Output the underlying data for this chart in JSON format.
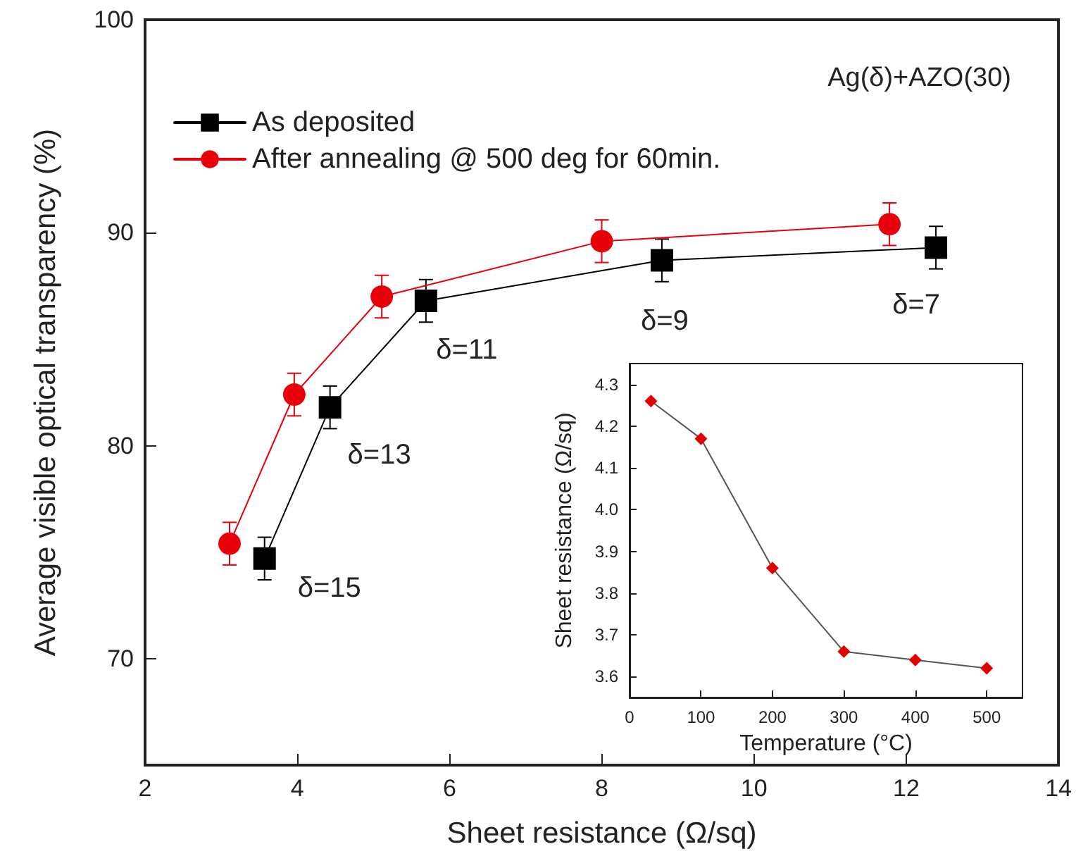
{
  "chart_data": [
    {
      "type": "line",
      "xlabel": "Sheet resistance (Ω/sq)",
      "ylabel": "Average visible optical transparency (%)",
      "xlim": [
        2,
        14
      ],
      "xticks": [
        2,
        4,
        6,
        8,
        10,
        12,
        14
      ],
      "ylim": [
        65,
        100
      ],
      "yticks": [
        70,
        80,
        90,
        100
      ],
      "grid": false,
      "legend": "top left",
      "line_style": "solid",
      "annotations": [
        "Ag(δ)+AZO(30)",
        {
          "text": "δ=15",
          "x": 3.57,
          "y": 74.7
        },
        {
          "text": "δ=13",
          "x": 4.43,
          "y": 81.8
        },
        {
          "text": "δ=11",
          "x": 5.69,
          "y": 86.8
        },
        {
          "text": "δ=9",
          "x": 8.79,
          "y": 88.7
        },
        {
          "text": "δ=7",
          "x": 12.39,
          "y": 89.3
        }
      ],
      "series": [
        {
          "name": "As deposited",
          "color": "#000000",
          "marker": "square",
          "x": [
            3.57,
            4.43,
            5.69,
            8.79,
            12.39
          ],
          "values": [
            74.7,
            81.8,
            86.8,
            88.7,
            89.3
          ],
          "errors": [
            1,
            1,
            1,
            1,
            1
          ]
        },
        {
          "name": "After annealing @ 500 deg for 60min.",
          "color": "#e8000b",
          "marker": "circle",
          "x": [
            3.11,
            3.96,
            5.11,
            8.0,
            11.78
          ],
          "values": [
            75.4,
            82.4,
            87.0,
            89.6,
            90.4
          ],
          "errors": [
            1,
            1,
            1,
            1,
            1
          ]
        }
      ]
    },
    {
      "type": "line",
      "xlabel": "Temperature (°C)",
      "ylabel": "Sheet resistance (Ω/sq)",
      "xlim": [
        0,
        550
      ],
      "xticks": [
        0,
        100,
        200,
        300,
        400,
        500
      ],
      "ylim": [
        3.55,
        4.35
      ],
      "yticks": [
        {
          "value": 3.6,
          "label": "3.6"
        },
        {
          "value": 3.7,
          "label": "3.7"
        },
        {
          "value": 3.8,
          "label": "3.8"
        },
        {
          "value": 3.9,
          "label": "3.9"
        },
        {
          "value": 4.0,
          "label": "4.0"
        },
        {
          "value": 4.1,
          "label": "4.1"
        },
        {
          "value": 4.2,
          "label": "4.2"
        },
        {
          "value": 4.3,
          "label": "4.3"
        }
      ],
      "grid": false,
      "legend": false,
      "marker": "diamond",
      "line_style": "solid",
      "series": [
        {
          "color": "#e00000",
          "x": [
            30,
            100,
            200,
            300,
            400,
            500
          ],
          "values": [
            4.26,
            4.17,
            3.86,
            3.66,
            3.64,
            3.62
          ]
        }
      ]
    }
  ]
}
